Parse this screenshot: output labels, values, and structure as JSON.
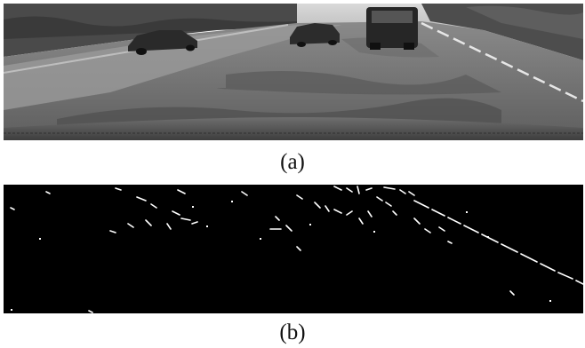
{
  "figure": {
    "panel_a": {
      "caption": "(a)"
    },
    "panel_b": {
      "caption": "(b)"
    }
  }
}
